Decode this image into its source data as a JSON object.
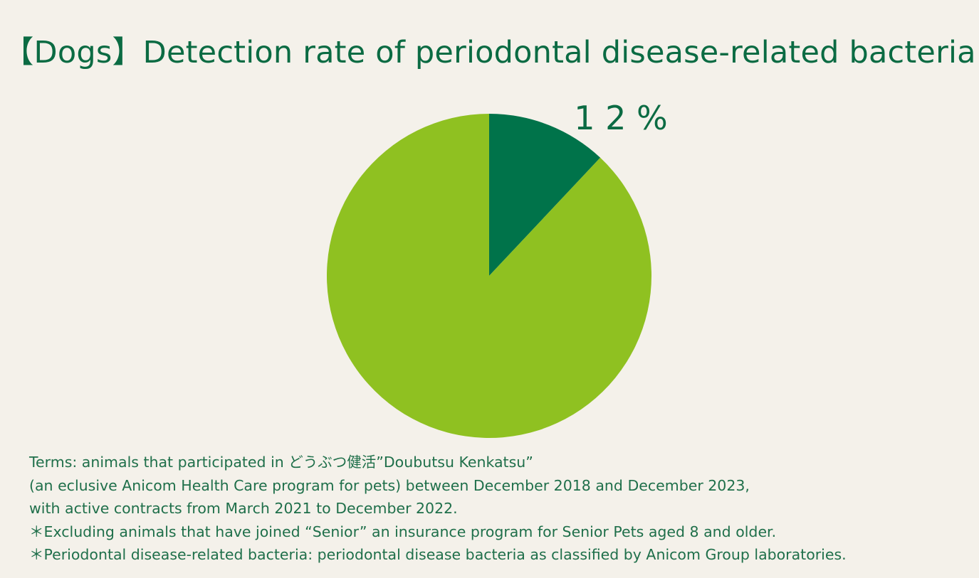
{
  "title": "【Dogs】Detection rate of periodontal disease-related bacteria",
  "chart_data": {
    "type": "pie",
    "title": "【Dogs】Detection rate of periodontal disease-related bacteria",
    "slices": [
      {
        "value": 12,
        "color": "#00734a",
        "label": "1 2 %"
      },
      {
        "value": 88,
        "color": "#8fc121",
        "label": ""
      }
    ],
    "start_angle_deg": 0,
    "direction": "clockwise",
    "legend": "none"
  },
  "notes": [
    "Terms: animals that participated in どうぶつ健活”Doubutsu Kenkatsu”",
    "(an eclusive Anicom Health Care program for pets) between December 2018 and December 2023,",
    " with active contracts from March 2021 to December 2022.",
    "＊Excluding animals that have joined “Senior” an insurance program for Senior Pets aged 8 and older.",
    "＊Periodontal disease-related bacteria: periodontal disease bacteria as classified by Anicom Group laboratories."
  ],
  "colors": {
    "background": "#f4f1ea",
    "text_green": "#0b6b43"
  }
}
